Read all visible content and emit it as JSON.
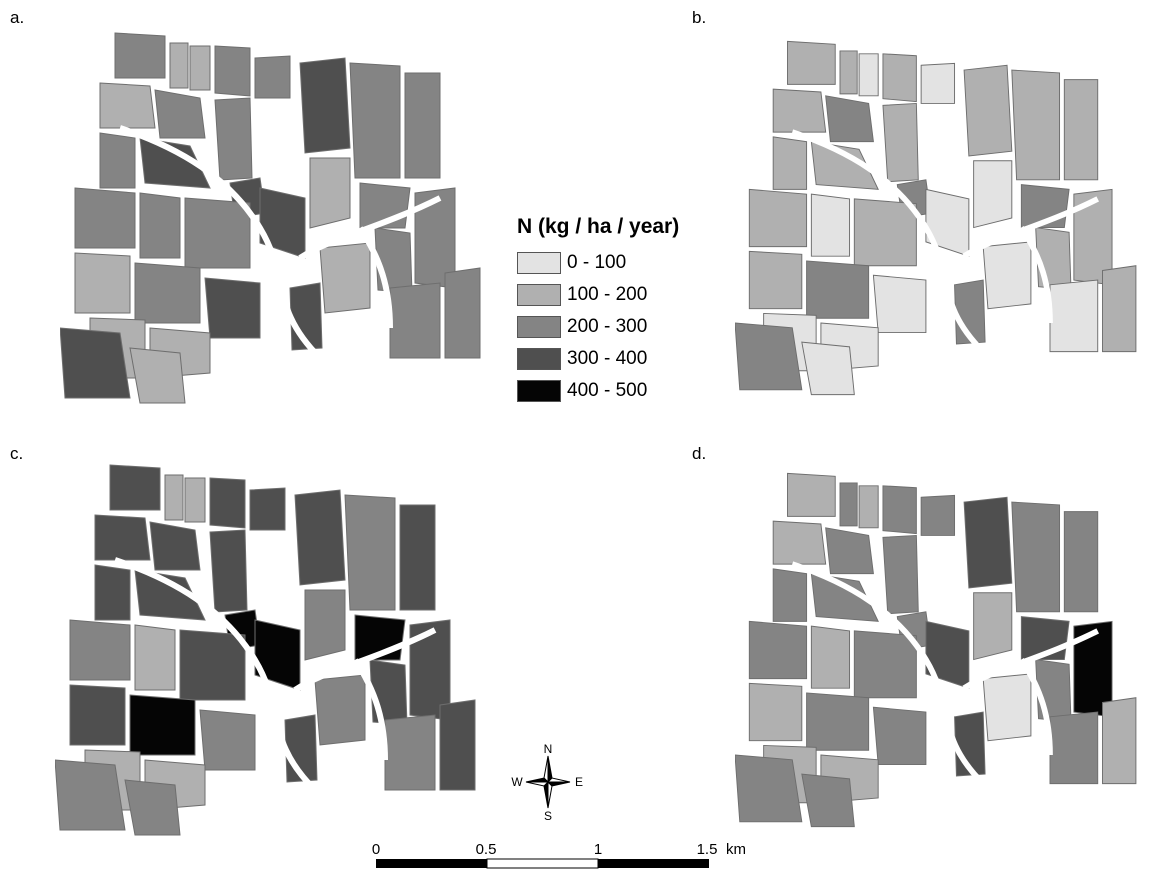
{
  "panels": {
    "a": "a.",
    "b": "b.",
    "c": "c.",
    "d": "d."
  },
  "legend": {
    "title": "N (kg / ha / year)",
    "classes": [
      {
        "label": "0 - 100",
        "color": "#e3e3e3"
      },
      {
        "label": "100 - 200",
        "color": "#b0b0b0"
      },
      {
        "label": "200 - 300",
        "color": "#848484"
      },
      {
        "label": "300 - 400",
        "color": "#4f4f4f"
      },
      {
        "label": "400 - 500",
        "color": "#050505"
      }
    ]
  },
  "compass": {
    "n": "N",
    "s": "S",
    "e": "E",
    "w": "W"
  },
  "scale_bar": {
    "ticks": [
      "0",
      "0.5",
      "1",
      "1.5"
    ],
    "unit": "km"
  },
  "maps": {
    "a": {
      "classes": [
        2,
        1,
        1,
        2,
        2,
        3,
        1,
        2,
        2,
        2,
        2,
        2,
        3,
        3,
        2,
        2,
        2,
        2,
        1,
        2,
        3,
        1,
        1,
        2,
        2,
        2,
        2,
        3,
        3,
        1,
        1,
        3,
        1
      ]
    },
    "b": {
      "classes": [
        1,
        1,
        0,
        1,
        0,
        1,
        1,
        2,
        1,
        1,
        1,
        2,
        2,
        1,
        1,
        1,
        0,
        1,
        1,
        2,
        0,
        0,
        0,
        1,
        1,
        0,
        1,
        2,
        0,
        0,
        0,
        2,
        0
      ]
    },
    "c": {
      "classes": [
        3,
        1,
        1,
        3,
        3,
        3,
        3,
        3,
        3,
        2,
        3,
        4,
        4,
        3,
        3,
        2,
        1,
        3,
        3,
        4,
        4,
        2,
        2,
        3,
        3,
        2,
        3,
        3,
        2,
        1,
        1,
        2,
        2
      ]
    },
    "d": {
      "classes": [
        1,
        2,
        1,
        2,
        2,
        3,
        1,
        2,
        2,
        2,
        2,
        3,
        2,
        2,
        2,
        2,
        1,
        2,
        1,
        2,
        3,
        1,
        0,
        2,
        4,
        2,
        1,
        3,
        2,
        1,
        1,
        2,
        2
      ]
    }
  }
}
